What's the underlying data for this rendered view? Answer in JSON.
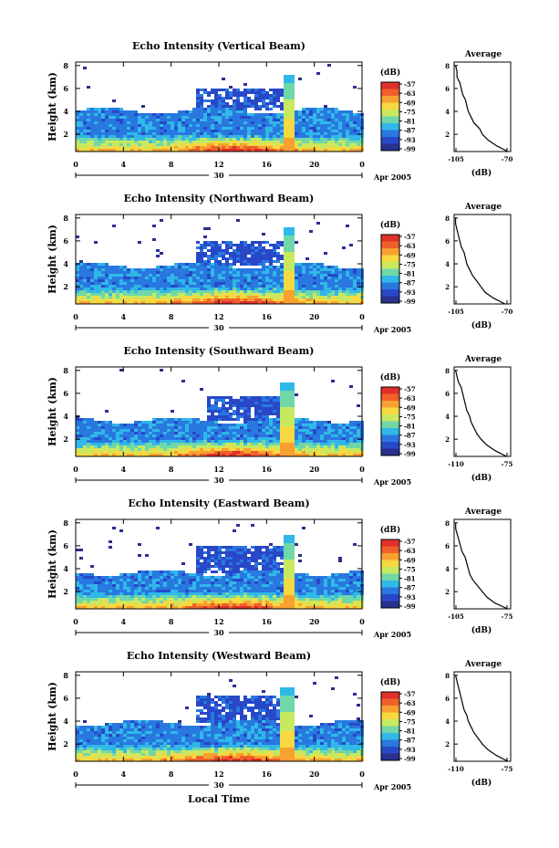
{
  "x_axis_label": "Local Time",
  "date_tail_label": "Apr 2005",
  "date_label": "30",
  "colorbar": {
    "unit": "(dB)",
    "ticks": [
      "-57",
      "-63",
      "-69",
      "-75",
      "-81",
      "-87",
      "-93",
      "-99"
    ],
    "colors": [
      "#e0302a",
      "#f0602a",
      "#f8a030",
      "#f8d840",
      "#c8e860",
      "#70d8a8",
      "#30b8e8",
      "#2878e0",
      "#2848c8",
      "#283090"
    ]
  },
  "chart_data": [
    {
      "type": "heatmap",
      "title": "Echo Intensity (Vertical Beam)",
      "ylabel": "Height (km)",
      "x_ticks": [
        "0",
        "4",
        "8",
        "12",
        "16",
        "20",
        "0"
      ],
      "y_ticks": [
        "2",
        "4",
        "6",
        "8"
      ],
      "ylim": [
        0.5,
        8.3
      ],
      "echo_top_km": 4.2,
      "upper_layer": {
        "x": [
          10,
          18
        ],
        "y": [
          4.2,
          6.2
        ]
      },
      "convective_spike": {
        "x": 17.8,
        "top_km": 7.2
      },
      "profile": {
        "title": "Average",
        "xlabel": "(dB)",
        "x_ticks": [
          "-105",
          "-70"
        ],
        "xlim": [
          -108,
          -68
        ],
        "y_ticks": [
          "2",
          "4",
          "6",
          "8"
        ],
        "heights": [
          0.5,
          1.0,
          1.5,
          2.0,
          2.5,
          3.0,
          3.5,
          4.0,
          4.5,
          5.0,
          5.5,
          6.0,
          6.5,
          7.0,
          7.5,
          8.0
        ],
        "values": [
          -70,
          -78,
          -84,
          -88,
          -90,
          -94,
          -96,
          -98,
          -99,
          -100,
          -102,
          -103,
          -104,
          -106,
          -106,
          -107
        ]
      }
    },
    {
      "type": "heatmap",
      "title": "Echo Intensity (Northward Beam)",
      "ylabel": "Height (km)",
      "x_ticks": [
        "0",
        "4",
        "8",
        "12",
        "16",
        "20",
        "0"
      ],
      "y_ticks": [
        "2",
        "4",
        "6",
        "8"
      ],
      "ylim": [
        0.5,
        8.3
      ],
      "echo_top_km": 4.0,
      "upper_layer": {
        "x": [
          10,
          18
        ],
        "y": [
          4.0,
          6.0
        ]
      },
      "convective_spike": {
        "x": 17.8,
        "top_km": 7.2
      },
      "profile": {
        "title": "Average",
        "xlabel": "(dB)",
        "x_ticks": [
          "-105",
          "-70"
        ],
        "xlim": [
          -108,
          -68
        ],
        "y_ticks": [
          "2",
          "4",
          "6",
          "8"
        ],
        "heights": [
          0.5,
          1.0,
          1.5,
          2.0,
          2.5,
          3.0,
          3.5,
          4.0,
          4.5,
          5.0,
          5.5,
          6.0,
          6.5,
          7.0,
          7.5,
          8.0
        ],
        "values": [
          -72,
          -80,
          -86,
          -89,
          -92,
          -95,
          -97,
          -99,
          -100,
          -101,
          -103,
          -104,
          -105,
          -106,
          -107,
          -107
        ]
      }
    },
    {
      "type": "heatmap",
      "title": "Echo Intensity (Southward Beam)",
      "ylabel": "Height (km)",
      "x_ticks": [
        "0",
        "4",
        "8",
        "12",
        "16",
        "20",
        "0"
      ],
      "y_ticks": [
        "2",
        "4",
        "6",
        "8"
      ],
      "ylim": [
        0.5,
        8.3
      ],
      "echo_top_km": 3.8,
      "upper_layer": {
        "x": [
          11,
          18
        ],
        "y": [
          3.8,
          5.8
        ]
      },
      "convective_spike": {
        "x": 17.6,
        "top_km": 7.0
      },
      "profile": {
        "title": "Average",
        "xlabel": "(dB)",
        "x_ticks": [
          "-110",
          "-75"
        ],
        "xlim": [
          -113,
          -73
        ],
        "y_ticks": [
          "2",
          "4",
          "6",
          "8"
        ],
        "heights": [
          0.5,
          1.0,
          1.5,
          2.0,
          2.5,
          3.0,
          3.5,
          4.0,
          4.5,
          5.0,
          5.5,
          6.0,
          6.5,
          7.0,
          7.5,
          8.0
        ],
        "values": [
          -76,
          -84,
          -90,
          -94,
          -97,
          -99,
          -101,
          -102,
          -104,
          -105,
          -106,
          -107,
          -108,
          -110,
          -111,
          -112
        ]
      }
    },
    {
      "type": "heatmap",
      "title": "Echo Intensity (Eastward Beam)",
      "ylabel": "Height (km)",
      "x_ticks": [
        "0",
        "4",
        "8",
        "12",
        "16",
        "20",
        "0"
      ],
      "y_ticks": [
        "2",
        "4",
        "6",
        "8"
      ],
      "ylim": [
        0.5,
        8.3
      ],
      "echo_top_km": 3.8,
      "upper_layer": {
        "x": [
          10,
          18
        ],
        "y": [
          3.8,
          6.0
        ]
      },
      "convective_spike": {
        "x": 17.8,
        "top_km": 7.0
      },
      "profile": {
        "title": "Average",
        "xlabel": "(dB)",
        "x_ticks": [
          "-105",
          "-75"
        ],
        "xlim": [
          -108,
          -72
        ],
        "y_ticks": [
          "2",
          "4",
          "6",
          "8"
        ],
        "heights": [
          0.5,
          1.0,
          1.5,
          2.0,
          2.5,
          3.0,
          3.5,
          4.0,
          4.5,
          5.0,
          5.5,
          6.0,
          6.5,
          7.0,
          7.5,
          8.0
        ],
        "values": [
          -74,
          -82,
          -87,
          -90,
          -93,
          -96,
          -98,
          -99,
          -100,
          -101,
          -103,
          -104,
          -105,
          -106,
          -107,
          -107
        ]
      }
    },
    {
      "type": "heatmap",
      "title": "Echo Intensity (Westward Beam)",
      "ylabel": "Height (km)",
      "x_ticks": [
        "0",
        "4",
        "8",
        "12",
        "16",
        "20",
        "0"
      ],
      "y_ticks": [
        "2",
        "4",
        "6",
        "8"
      ],
      "ylim": [
        0.5,
        8.3
      ],
      "echo_top_km": 4.0,
      "upper_layer": {
        "x": [
          10,
          18
        ],
        "y": [
          4.0,
          6.4
        ]
      },
      "convective_spike": {
        "x": 17.6,
        "top_km": 7.0
      },
      "profile": {
        "title": "Average",
        "xlabel": "(dB)",
        "x_ticks": [
          "-110",
          "-75"
        ],
        "xlim": [
          -113,
          -73
        ],
        "y_ticks": [
          "2",
          "4",
          "6",
          "8"
        ],
        "heights": [
          0.5,
          1.0,
          1.5,
          2.0,
          2.5,
          3.0,
          3.5,
          4.0,
          4.5,
          5.0,
          5.5,
          6.0,
          6.5,
          7.0,
          7.5,
          8.0
        ],
        "values": [
          -75,
          -83,
          -89,
          -93,
          -96,
          -99,
          -101,
          -103,
          -104,
          -106,
          -107,
          -108,
          -109,
          -110,
          -111,
          -112
        ]
      }
    }
  ]
}
